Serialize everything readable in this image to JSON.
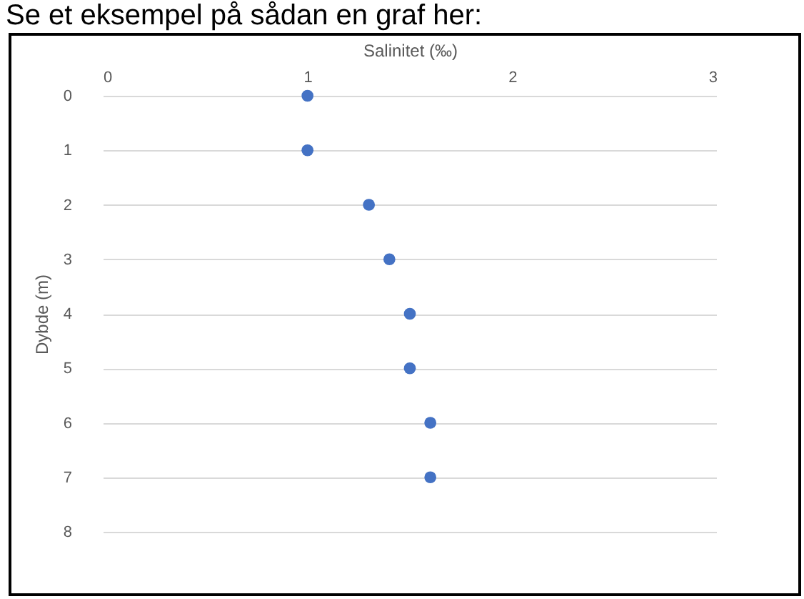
{
  "chart_data": {
    "type": "scatter",
    "title": "Se et eksempel på sådan en graf her:",
    "xlabel": "Salinitet (‰)",
    "ylabel": "Dybde (m)",
    "series": [
      {
        "color": "#4472c4",
        "x": [
          1,
          1,
          1.3,
          1.4,
          1.5,
          1.5,
          1.6,
          1.6
        ],
        "values": [
          0,
          1,
          2,
          3,
          4,
          5,
          6,
          7
        ]
      }
    ],
    "xlim": [
      0,
      3
    ],
    "xticks": [
      0,
      1,
      2,
      3
    ],
    "ylim": [
      8,
      0
    ],
    "yticks": [
      0,
      1,
      2,
      3,
      4,
      5,
      6,
      7,
      8
    ],
    "grid": "y",
    "marker": "circle"
  }
}
